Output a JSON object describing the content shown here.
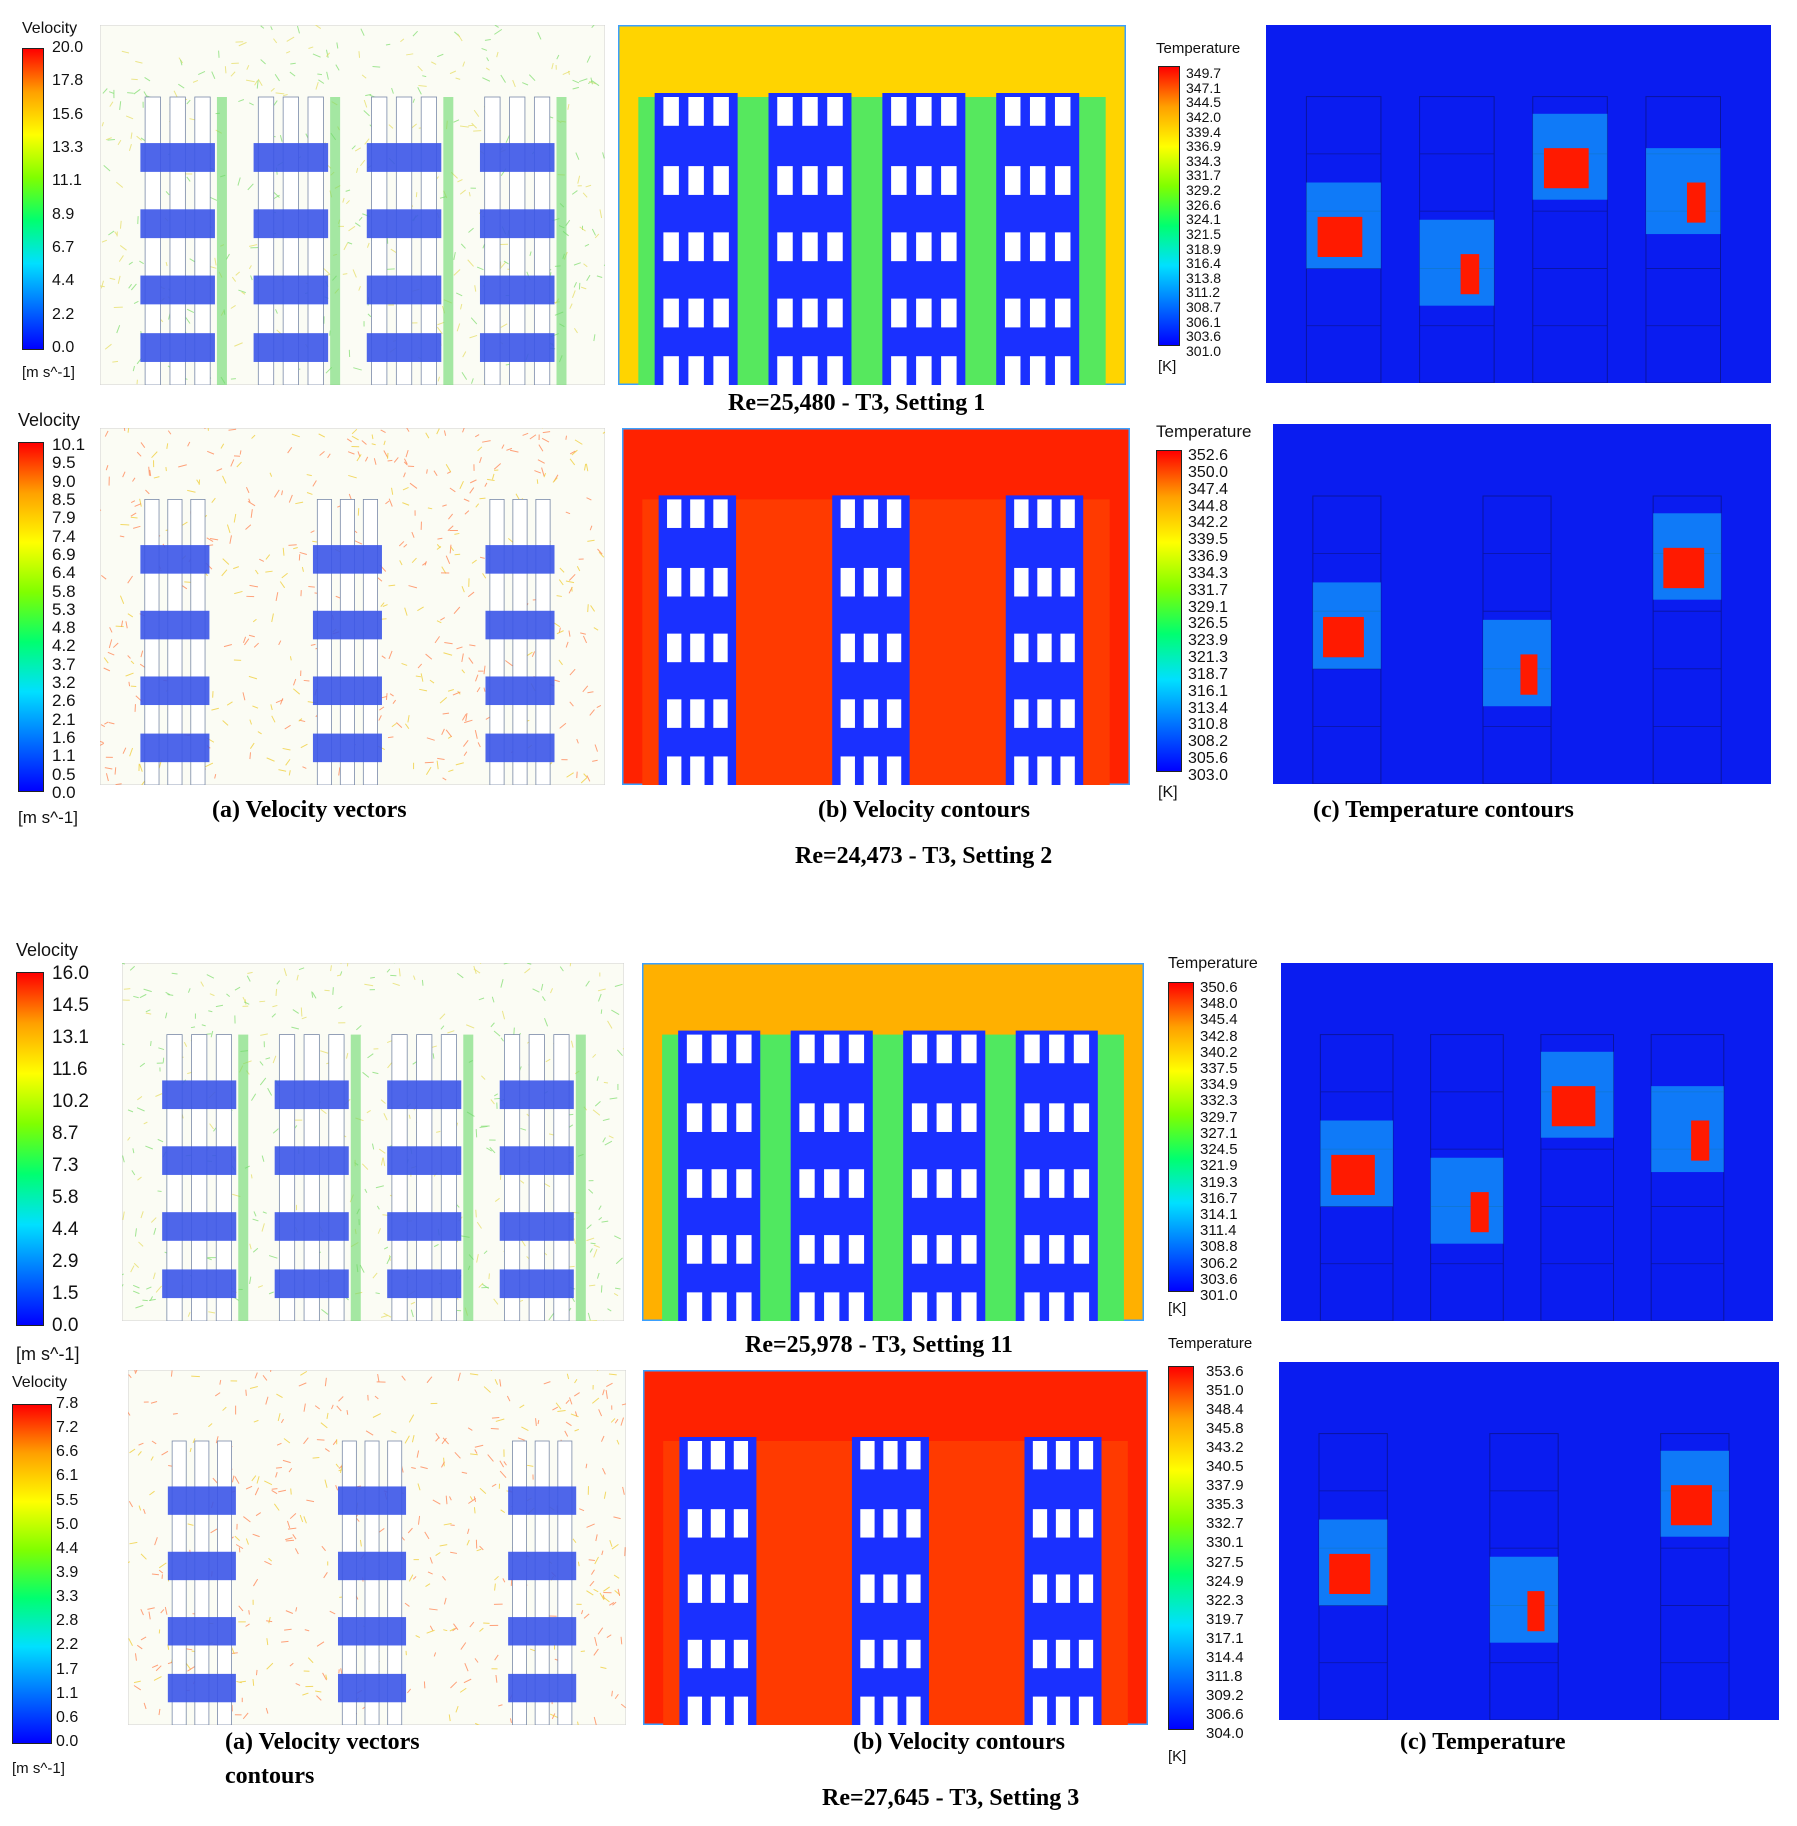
{
  "colors": {
    "hot": "#ff1a00",
    "cool": "#0a1cf0",
    "wall": "#ffffff",
    "grid": "#1e2aa0",
    "vecbg": "#fbfcf4"
  },
  "scale": {
    "velocity": [
      "#0000ff",
      "#0070ff",
      "#00e0ff",
      "#00ff70",
      "#80ff00",
      "#ffff00",
      "#ffa000",
      "#ff0000"
    ],
    "temperature": [
      "#0000ff",
      "#0070ff",
      "#00e0ff",
      "#00ff70",
      "#80ff00",
      "#ffff00",
      "#ffa000",
      "#ff0000"
    ]
  },
  "rows": [
    {
      "vel_title": "Velocity",
      "vel_unit": "[m s^-1]",
      "vel_ticks": [
        "20.0",
        "17.8",
        "15.6",
        "13.3",
        "11.1",
        "8.9",
        "6.7",
        "4.4",
        "2.2",
        "0.0"
      ],
      "temp_title": "Temperature",
      "temp_unit": "[K]",
      "temp_ticks": [
        "349.7",
        "347.1",
        "344.5",
        "342.0",
        "339.4",
        "336.9",
        "334.3",
        "331.7",
        "329.2",
        "326.6",
        "324.1",
        "321.5",
        "318.9",
        "316.4",
        "313.8",
        "311.2",
        "308.7",
        "306.1",
        "303.6",
        "301.0"
      ],
      "racks": 4,
      "contour_top": "#ffd400",
      "contour_gap": "#56e85e"
    },
    {
      "vel_title": "Velocity",
      "vel_unit": "[m s^-1]",
      "vel_ticks": [
        "10.1",
        "9.5",
        "9.0",
        "8.5",
        "7.9",
        "7.4",
        "6.9",
        "6.4",
        "5.8",
        "5.3",
        "4.8",
        "4.2",
        "3.7",
        "3.2",
        "2.6",
        "2.1",
        "1.6",
        "1.1",
        "0.5",
        "0.0"
      ],
      "temp_title": "Temperature",
      "temp_unit": "[K]",
      "temp_ticks": [
        "352.6",
        "350.0",
        "347.4",
        "344.8",
        "342.2",
        "339.5",
        "336.9",
        "334.3",
        "331.7",
        "329.1",
        "326.5",
        "323.9",
        "321.3",
        "318.7",
        "316.1",
        "313.4",
        "310.8",
        "308.2",
        "305.6",
        "303.0"
      ],
      "racks": 3,
      "contour_top": "#ff2200",
      "contour_gap": "#ff3a00"
    },
    {
      "vel_title": "Velocity",
      "vel_unit": "[m s^-1]",
      "vel_ticks": [
        "16.0",
        "14.5",
        "13.1",
        "11.6",
        "10.2",
        "8.7",
        "7.3",
        "5.8",
        "4.4",
        "2.9",
        "1.5",
        "0.0"
      ],
      "temp_title": "Temperature",
      "temp_unit": "[K]",
      "temp_ticks": [
        "350.6",
        "348.0",
        "345.4",
        "342.8",
        "340.2",
        "337.5",
        "334.9",
        "332.3",
        "329.7",
        "327.1",
        "324.5",
        "321.9",
        "319.3",
        "316.7",
        "314.1",
        "311.4",
        "308.8",
        "306.2",
        "303.6",
        "301.0"
      ],
      "racks": 4,
      "contour_top": "#ffb000",
      "contour_gap": "#50e860"
    },
    {
      "vel_title": "Velocity",
      "vel_unit": "[m s^-1]",
      "vel_ticks": [
        "7.8",
        "7.2",
        "6.6",
        "6.1",
        "5.5",
        "5.0",
        "4.4",
        "3.9",
        "3.3",
        "2.8",
        "2.2",
        "1.7",
        "1.1",
        "0.6",
        "0.0"
      ],
      "temp_title": "Temperature",
      "temp_unit": "[K]",
      "temp_ticks": [
        "353.6",
        "351.0",
        "348.4",
        "345.8",
        "343.2",
        "340.5",
        "337.9",
        "335.3",
        "332.7",
        "330.1",
        "327.5",
        "324.9",
        "322.3",
        "319.7",
        "317.1",
        "314.4",
        "311.8",
        "309.2",
        "306.6",
        "304.0"
      ],
      "racks": 3,
      "contour_top": "#ff2200",
      "contour_gap": "#ff3a00"
    }
  ],
  "captions": {
    "setting1": "Re=25,480  - T3, Setting 1",
    "vectors": "(a) Velocity vectors",
    "vel_contours": "(b) Velocity contours",
    "temp_contours": "(c) Temperature contours",
    "setting2": "Re=24,473  - T3, Setting 2",
    "setting11": "Re=25,978  - T3, Setting 11",
    "vectors2_line1": "(a) Velocity vectors",
    "vectors2_line2": "contours",
    "vel_contours2": "(b) Velocity contours",
    "temperature2": "(c) Temperature",
    "setting3": "Re=27,645  - T3, Setting 3"
  }
}
